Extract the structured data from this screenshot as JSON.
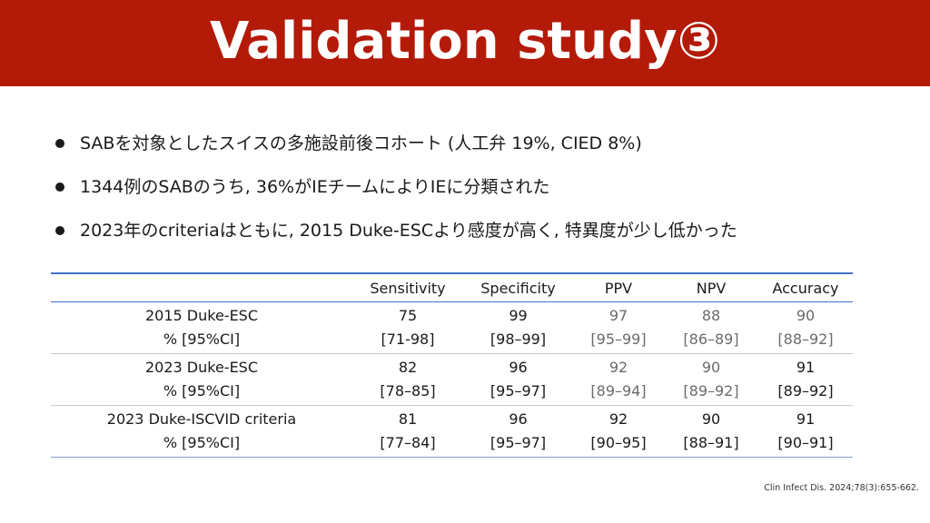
{
  "slide": {
    "title": "Validation study③",
    "title_bar_color": "#b31a08"
  },
  "bullets": [
    "SABを対象としたスイスの多施設前後コホート (人工弁 19%, CIED 8%)",
    "1344例のSABのうち, 36%がIEチームによりIEに分類された",
    "2023年のcriteriaはともに, 2015 Duke-ESCより感度が高く, 特異度が少し低かった"
  ],
  "table": {
    "headers": [
      "",
      "Sensitivity",
      "Specificity",
      "PPV",
      "NPV",
      "Accuracy"
    ],
    "rows": [
      {
        "label": "2015 Duke-ESC",
        "sublabel": "% [95%CI]",
        "sensitivity": {
          "value": "75",
          "ci": "[71-98]"
        },
        "specificity": {
          "value": "99",
          "ci": "[98–99]"
        },
        "ppv": {
          "value": "97",
          "ci": "[95–99]"
        },
        "npv": {
          "value": "88",
          "ci": "[86–89]"
        },
        "accuracy": {
          "value": "90",
          "ci": "[88–92]"
        }
      },
      {
        "label": "2023 Duke-ESC",
        "sublabel": "% [95%CI]",
        "sensitivity": {
          "value": "82",
          "ci": "[78–85]"
        },
        "specificity": {
          "value": "96",
          "ci": "[95–97]"
        },
        "ppv": {
          "value": "92",
          "ci": "[89–94]"
        },
        "npv": {
          "value": "90",
          "ci": "[89–92]"
        },
        "accuracy": {
          "value": "91",
          "ci": "[89–92]"
        }
      },
      {
        "label": "2023 Duke-ISCVID criteria",
        "sublabel": "% [95%CI]",
        "sensitivity": {
          "value": "81",
          "ci": "[77–84]"
        },
        "specificity": {
          "value": "96",
          "ci": "[95–97]"
        },
        "ppv": {
          "value": "92",
          "ci": "[90–95]"
        },
        "npv": {
          "value": "90",
          "ci": "[88–91]"
        },
        "accuracy": {
          "value": "91",
          "ci": "[90–91]"
        }
      }
    ],
    "header_rule_color": "#4472c4"
  },
  "citation": "Clin Infect Dis. 2024;78(3):655-662."
}
